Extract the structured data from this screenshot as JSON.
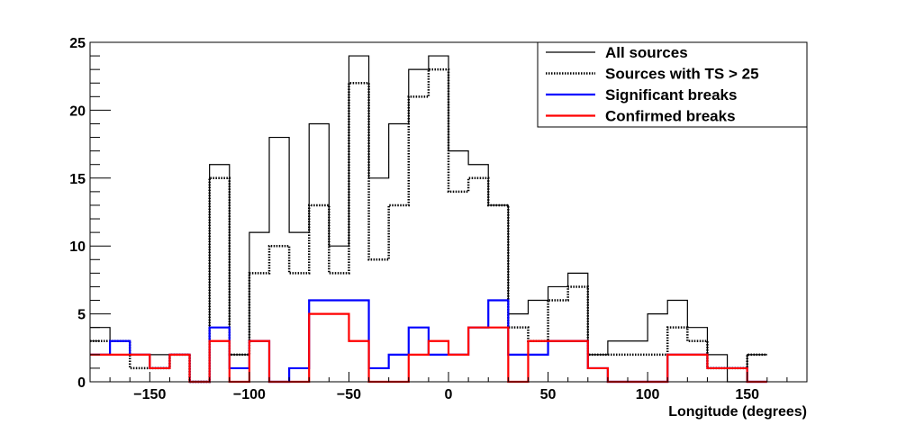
{
  "chart_data": {
    "type": "histogram",
    "xlabel": "Longitude (degrees)",
    "ylabel": "",
    "xlim": [
      -180,
      180
    ],
    "ylim": [
      0,
      25
    ],
    "bin_width": 10,
    "bin_edges_start": -180,
    "x_ticks": [
      "−150",
      "−100",
      "−50",
      "0",
      "50",
      "100",
      "150"
    ],
    "x_tick_values": [
      -150,
      -100,
      -50,
      0,
      50,
      100,
      150
    ],
    "y_ticks": [
      "0",
      "5",
      "10",
      "15",
      "20",
      "25"
    ],
    "y_tick_values": [
      0,
      5,
      10,
      15,
      20,
      25
    ],
    "legend_position": "top-right",
    "series": [
      {
        "name": "All sources",
        "color": "#000000",
        "style": "solid",
        "values": [
          4,
          3,
          2,
          2,
          2,
          0,
          16,
          2,
          11,
          18,
          11,
          19,
          10,
          24,
          15,
          19,
          23,
          24,
          17,
          16,
          13,
          5,
          6,
          7,
          8,
          2,
          3,
          3,
          5,
          6,
          4,
          2,
          0,
          2
        ]
      },
      {
        "name": "Sources with TS > 25",
        "color": "#000000",
        "style": "dotted",
        "values": [
          3,
          3,
          1,
          1,
          2,
          0,
          15,
          2,
          8,
          10,
          8,
          13,
          8,
          22,
          9,
          13,
          21,
          23,
          14,
          15,
          13,
          4,
          3,
          6,
          7,
          2,
          2,
          2,
          2,
          4,
          3,
          1,
          1,
          2
        ]
      },
      {
        "name": "Significant breaks",
        "color": "#0000ff",
        "style": "solid",
        "values": [
          2,
          3,
          2,
          1,
          2,
          0,
          4,
          1,
          3,
          0,
          1,
          6,
          6,
          6,
          1,
          2,
          4,
          2,
          2,
          4,
          6,
          2,
          2,
          3,
          3,
          1,
          0,
          0,
          0,
          2,
          2,
          1,
          1,
          0
        ]
      },
      {
        "name": "Confirmed breaks",
        "color": "#ff0000",
        "style": "solid",
        "values": [
          2,
          2,
          2,
          1,
          2,
          0,
          3,
          0,
          3,
          0,
          0,
          5,
          5,
          3,
          0,
          0,
          2,
          3,
          2,
          4,
          4,
          0,
          3,
          3,
          3,
          1,
          0,
          0,
          0,
          2,
          2,
          1,
          1,
          0
        ]
      }
    ]
  }
}
